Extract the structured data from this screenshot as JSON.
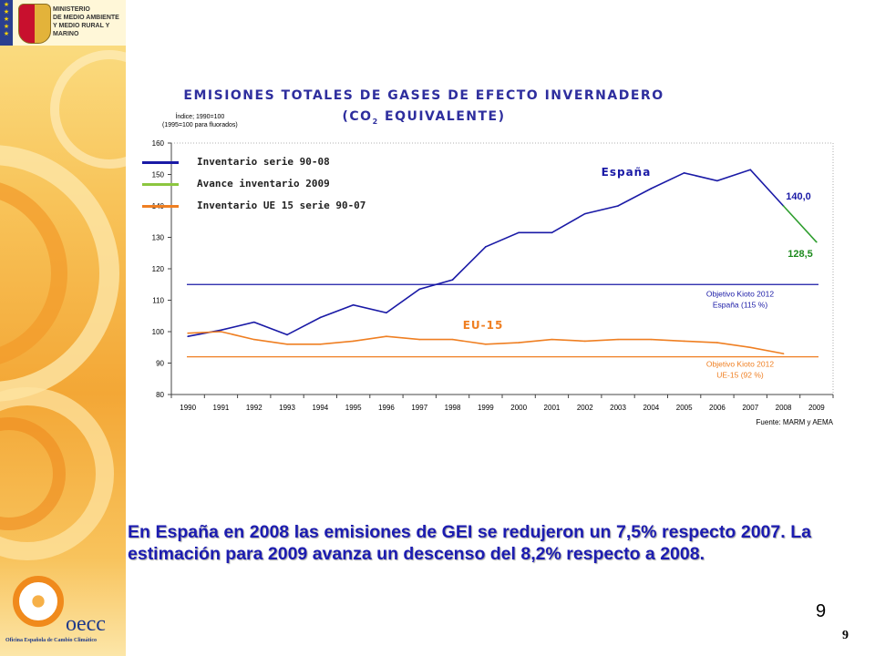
{
  "header": {
    "ministry_lines": "MINISTERIO\nDE MEDIO AMBIENTE\nY MEDIO RURAL Y MARINO"
  },
  "chart_data": {
    "type": "line",
    "title": "EMISIONES TOTALES DE GASES DE EFECTO INVERNADERO",
    "subtitle": "(CO2 EQUIVALENTE)",
    "ylabel_lines": [
      "Índice; 1990=100",
      "(1995=100 para fluorados)"
    ],
    "ylim": [
      80,
      160
    ],
    "yticks": [
      80,
      90,
      100,
      110,
      120,
      130,
      140,
      150,
      160
    ],
    "categories": [
      "1990",
      "1991",
      "1992",
      "1993",
      "1994",
      "1995",
      "1996",
      "1997",
      "1998",
      "1999",
      "2000",
      "2001",
      "2002",
      "2003",
      "2004",
      "2005",
      "2006",
      "2007",
      "2008",
      "2009"
    ],
    "series": [
      {
        "name": "Inventario serie 90-08",
        "color": "#1a1aa6",
        "values": [
          98.5,
          100.5,
          103,
          99,
          104.5,
          108.5,
          106,
          113.5,
          116.5,
          127,
          131.5,
          131.5,
          137.5,
          140,
          145.5,
          150.5,
          148,
          151.5,
          140.0,
          null
        ]
      },
      {
        "name": "Avance inventario 2009",
        "color": "#2e9e2e",
        "values": [
          null,
          null,
          null,
          null,
          null,
          null,
          null,
          null,
          null,
          null,
          null,
          null,
          null,
          null,
          null,
          null,
          null,
          null,
          140.0,
          128.5
        ]
      },
      {
        "name": "Inventario UE 15 serie 90-07",
        "color": "#ef7f22",
        "values": [
          99.5,
          100,
          97.5,
          96,
          96,
          97,
          98.5,
          97.5,
          97.5,
          96,
          96.5,
          97.5,
          97,
          97.5,
          97.5,
          97,
          96.5,
          95,
          93,
          null
        ]
      }
    ],
    "reference_lines": [
      {
        "value": 115,
        "color": "#1a1aa6",
        "label_lines": [
          "Objetivo Kioto 2012",
          "España (115 %)"
        ]
      },
      {
        "value": 92,
        "color": "#ef7f22",
        "label_lines": [
          "Objetivo Kioto 2012",
          "UE-15 (92 %)"
        ]
      }
    ],
    "annotations": {
      "spain": "España",
      "eu15": "EU-15",
      "v2008": "140,0",
      "v2009": "128,5"
    },
    "source": "Fuente: MARM y AEMA",
    "colors": {
      "blue": "#1a1aa6",
      "green": "#2e9e2e",
      "orange": "#ef7f22",
      "green_label": "#1c8a1c"
    }
  },
  "body": {
    "text": "En España en 2008 las emisiones de GEI se redujeron un 7,5% respecto 2007. La estimación para 2009 avanza un descenso del 8,2% respecto a 2008."
  },
  "footer": {
    "page_number": "9",
    "page_number_small": "9",
    "logo_word": "oecc",
    "logo_subtitle": "Oficina Española de Cambio Climático"
  }
}
